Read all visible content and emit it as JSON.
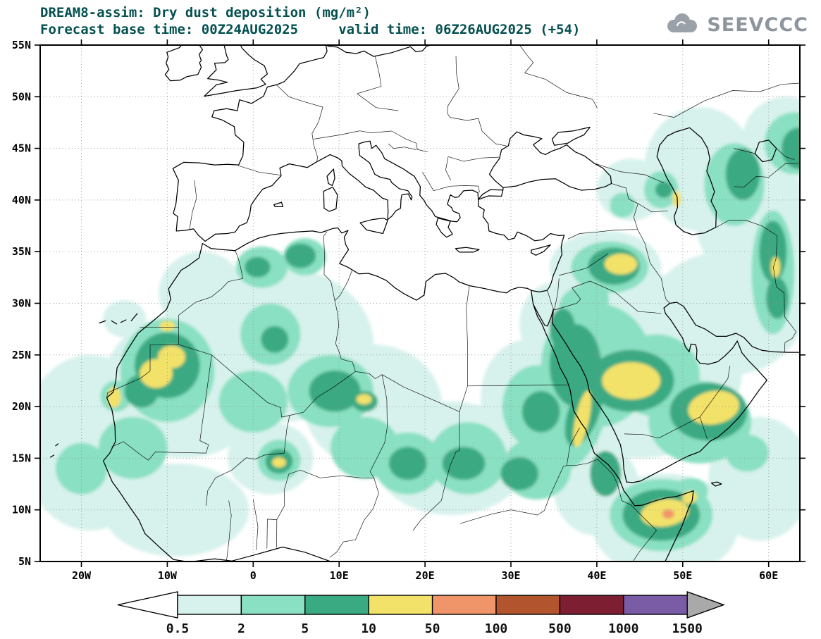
{
  "header": {
    "title_line1": "DREAM8-assim: Dry dust deposition (mg/m²)",
    "title_line2": "Forecast base time: 00Z24AUG2025     valid time: 06Z26AUG2025 (+54)",
    "logo_text": "SEEVCCC"
  },
  "map": {
    "lat_ticks": [
      {
        "label": "55N",
        "value": 55
      },
      {
        "label": "50N",
        "value": 50
      },
      {
        "label": "45N",
        "value": 45
      },
      {
        "label": "40N",
        "value": 40
      },
      {
        "label": "35N",
        "value": 35
      },
      {
        "label": "30N",
        "value": 30
      },
      {
        "label": "25N",
        "value": 25
      },
      {
        "label": "20N",
        "value": 20
      },
      {
        "label": "15N",
        "value": 15
      },
      {
        "label": "10N",
        "value": 10
      },
      {
        "label": "5N",
        "value": 5
      }
    ],
    "lon_ticks": [
      {
        "label": "20W",
        "value": -20
      },
      {
        "label": "10W",
        "value": -10
      },
      {
        "label": "0",
        "value": 0
      },
      {
        "label": "10E",
        "value": 10
      },
      {
        "label": "20E",
        "value": 20
      },
      {
        "label": "30E",
        "value": 30
      },
      {
        "label": "40E",
        "value": 40
      },
      {
        "label": "50E",
        "value": 50
      },
      {
        "label": "60E",
        "value": 60
      }
    ]
  },
  "legend": {
    "values": [
      "0.5",
      "2",
      "5",
      "10",
      "50",
      "100",
      "500",
      "1000",
      "1500"
    ],
    "colors": [
      "#ffffff",
      "#d7f2ec",
      "#8ae0c2",
      "#3aaa82",
      "#f3e26a",
      "#f0956a",
      "#b2552f",
      "#7e1e33",
      "#7a5ba6",
      "#a9a9a9"
    ]
  },
  "chart_data": {
    "type": "filled-contour-map",
    "title": "DREAM8-assim: Dry dust deposition (mg/m²)",
    "unit": "mg/m²",
    "levels": [
      0.5,
      2,
      5,
      10,
      50,
      100,
      500,
      1000,
      1500
    ],
    "palette": {
      "p": "#d7f2ec",
      "a": "#8ae0c2",
      "g": "#3aaa82",
      "y": "#f3e26a",
      "s": "#f0956a"
    },
    "level_meaning": {
      "p": "0.5-2",
      "a": "2-5",
      "g": "5-10",
      "y": "10-50",
      "s": "50-100"
    },
    "regions": [
      [
        -19,
        16.5,
        8,
        8.5,
        0,
        "p"
      ],
      [
        -8,
        22,
        9.5,
        7,
        0,
        "p"
      ],
      [
        3,
        26,
        11,
        7.5,
        0,
        "p"
      ],
      [
        -6,
        31,
        5,
        4,
        0,
        "p"
      ],
      [
        14,
        20,
        8,
        6,
        0,
        "p"
      ],
      [
        23,
        15,
        9,
        5.5,
        0,
        "p"
      ],
      [
        32,
        21,
        5.5,
        5.5,
        0,
        "p"
      ],
      [
        2,
        15,
        5,
        3.5,
        0,
        "p"
      ],
      [
        45,
        24,
        12,
        9,
        0,
        "p"
      ],
      [
        41,
        33.5,
        6.5,
        3.5,
        0,
        "p"
      ],
      [
        55,
        29,
        9,
        6,
        0,
        "p"
      ],
      [
        61,
        35,
        5,
        8,
        0,
        "p"
      ],
      [
        52,
        43,
        6.5,
        6,
        0,
        "p"
      ],
      [
        62,
        46,
        5,
        4,
        0,
        "p"
      ],
      [
        48,
        8.5,
        8.5,
        5,
        0,
        "p"
      ],
      [
        40,
        12,
        5,
        4.5,
        0,
        "p"
      ],
      [
        -9,
        10,
        8.5,
        4.5,
        0,
        "p"
      ],
      [
        44,
        41,
        4,
        3,
        0,
        "p"
      ],
      [
        -15,
        28.5,
        2.5,
        1.8,
        0,
        "p"
      ],
      [
        35,
        28,
        4,
        4,
        0,
        "p"
      ],
      [
        56,
        38,
        4.5,
        5,
        0,
        "p"
      ],
      [
        59,
        13,
        6,
        6,
        0,
        "p"
      ],
      [
        -10,
        23.5,
        5.5,
        5,
        0,
        "a"
      ],
      [
        -14,
        16,
        4,
        3,
        0,
        "a"
      ],
      [
        -20,
        14,
        3,
        2.5,
        0,
        "a"
      ],
      [
        1,
        33.5,
        3,
        2,
        0,
        "a"
      ],
      [
        6,
        34.5,
        2.5,
        1.8,
        0,
        "a"
      ],
      [
        2,
        27,
        3.5,
        3,
        0,
        "a"
      ],
      [
        0,
        20.5,
        4,
        3,
        0,
        "a"
      ],
      [
        9,
        21.5,
        5,
        3.5,
        0,
        "a"
      ],
      [
        13,
        16,
        4,
        3,
        0,
        "a"
      ],
      [
        18,
        14.5,
        4,
        3,
        0,
        "a"
      ],
      [
        25,
        15,
        4.5,
        3.5,
        0,
        "a"
      ],
      [
        33,
        14,
        4,
        3,
        0,
        "a"
      ],
      [
        33,
        20,
        4,
        4,
        0,
        "a"
      ],
      [
        40,
        24,
        6.5,
        6,
        0,
        "a"
      ],
      [
        41.5,
        33.5,
        4.5,
        2.5,
        0,
        "a"
      ],
      [
        47,
        23,
        5,
        4,
        0,
        "a"
      ],
      [
        52,
        18.5,
        6,
        4,
        0,
        "a"
      ],
      [
        47.5,
        9.5,
        6,
        3.5,
        0,
        "a"
      ],
      [
        38,
        18,
        2.5,
        4.5,
        25,
        "a"
      ],
      [
        60.5,
        33,
        2.5,
        6,
        0,
        "a"
      ],
      [
        56,
        41.5,
        3.5,
        4,
        0,
        "a"
      ],
      [
        63,
        45.5,
        3.5,
        3,
        0,
        "a"
      ],
      [
        47.5,
        41,
        2,
        1.8,
        0,
        "a"
      ],
      [
        43,
        39.5,
        1.5,
        1.2,
        0,
        "a"
      ],
      [
        3,
        14.8,
        2.5,
        2,
        0,
        "a"
      ],
      [
        -16,
        21,
        1.8,
        1.5,
        0,
        "a"
      ],
      [
        38.5,
        30,
        3,
        1.8,
        -20,
        "a"
      ],
      [
        50.5,
        11.5,
        2.5,
        1.5,
        -20,
        "a"
      ],
      [
        57.5,
        15.5,
        2.5,
        1.8,
        0,
        "a"
      ],
      [
        -10,
        24,
        3.8,
        3.2,
        0,
        "g"
      ],
      [
        -13,
        21.5,
        2,
        1.6,
        0,
        "g"
      ],
      [
        5.5,
        34.6,
        1.8,
        1.2,
        0,
        "g"
      ],
      [
        0.5,
        33.5,
        1.5,
        1,
        0,
        "g"
      ],
      [
        2.5,
        26.5,
        1.6,
        1.3,
        0,
        "g"
      ],
      [
        9.5,
        21.5,
        3,
        2,
        0,
        "g"
      ],
      [
        13,
        20.5,
        1.5,
        1,
        0,
        "g"
      ],
      [
        18,
        14.5,
        2.2,
        1.6,
        0,
        "g"
      ],
      [
        24.5,
        14.5,
        2.5,
        1.6,
        0,
        "g"
      ],
      [
        31,
        13.5,
        2.2,
        1.6,
        0,
        "g"
      ],
      [
        33.5,
        19.5,
        2.2,
        2,
        0,
        "g"
      ],
      [
        37.5,
        24,
        3,
        4,
        0,
        "g"
      ],
      [
        36,
        27.5,
        1.5,
        2,
        0,
        "g"
      ],
      [
        44,
        22.5,
        5,
        3,
        0,
        "g"
      ],
      [
        42,
        33.6,
        3,
        1.8,
        0,
        "g"
      ],
      [
        53,
        19.5,
        4.5,
        2.8,
        0,
        "g"
      ],
      [
        47.5,
        9.5,
        4.5,
        2.5,
        0,
        "g"
      ],
      [
        41,
        13.5,
        1.8,
        2.2,
        0,
        "g"
      ],
      [
        60.5,
        35,
        1.6,
        3,
        0,
        "g"
      ],
      [
        61,
        30.5,
        1.3,
        2,
        0,
        "g"
      ],
      [
        57,
        42.5,
        2,
        2.5,
        0,
        "g"
      ],
      [
        63.5,
        45,
        2,
        2,
        0,
        "g"
      ],
      [
        47.8,
        41,
        1,
        0.8,
        0,
        "g"
      ],
      [
        3,
        14.7,
        1.6,
        1.2,
        0,
        "g"
      ],
      [
        38.5,
        19.5,
        1.8,
        3.5,
        20,
        "g"
      ],
      [
        -9.5,
        24.8,
        1.6,
        1.1,
        0,
        "y"
      ],
      [
        -11.3,
        23.2,
        1.9,
        1.4,
        0,
        "y"
      ],
      [
        -16.2,
        20.9,
        0.8,
        1.0,
        0,
        "y"
      ],
      [
        -10,
        27.8,
        0.9,
        0.5,
        0,
        "y"
      ],
      [
        12.9,
        20.7,
        0.9,
        0.5,
        0,
        "y"
      ],
      [
        3,
        14.6,
        0.8,
        0.5,
        0,
        "y"
      ],
      [
        38.3,
        18.8,
        0.8,
        2.8,
        12,
        "y"
      ],
      [
        44,
        22.5,
        3.4,
        1.8,
        0,
        "y"
      ],
      [
        42.8,
        33.8,
        1.9,
        1.0,
        0,
        "y"
      ],
      [
        53.6,
        19.9,
        3.0,
        1.6,
        -10,
        "y"
      ],
      [
        47.9,
        9.7,
        2.8,
        1.3,
        -8,
        "y"
      ],
      [
        50.8,
        11.2,
        0.9,
        0.6,
        -20,
        "y"
      ],
      [
        49.3,
        40.1,
        0.5,
        0.8,
        0,
        "y"
      ],
      [
        60.8,
        33.5,
        0.55,
        1.0,
        0,
        "y"
      ],
      [
        48.3,
        9.6,
        0.7,
        0.45,
        0,
        "s"
      ]
    ]
  }
}
